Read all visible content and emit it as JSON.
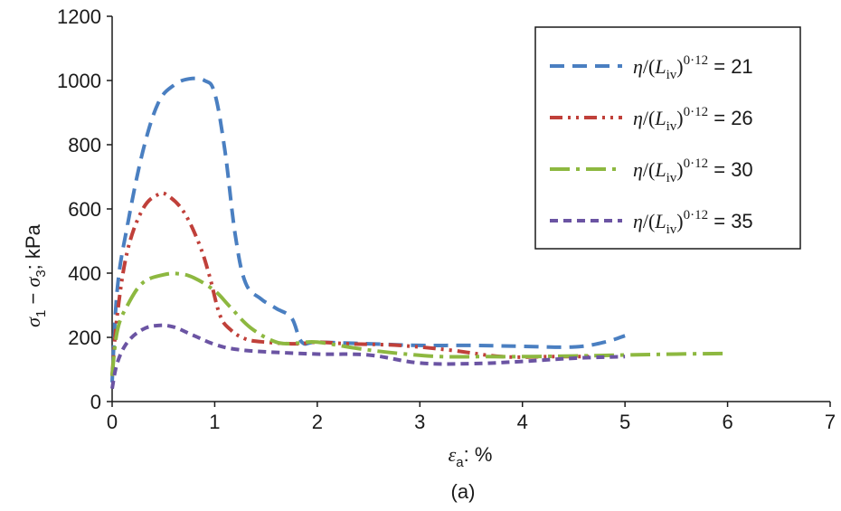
{
  "chart_data": {
    "type": "line",
    "caption": "(a)",
    "xlabel": {
      "var": "ε",
      "sub": "a",
      "unit": ": %"
    },
    "ylabel": {
      "text": "σ1 − σ3; kPa"
    },
    "xlim": [
      0,
      7
    ],
    "ylim": [
      0,
      1200
    ],
    "xticks": [
      0,
      1,
      2,
      3,
      4,
      5,
      6,
      7
    ],
    "yticks": [
      0,
      200,
      400,
      600,
      800,
      1000,
      1200
    ],
    "legend_position": "top-right",
    "grid": false,
    "series": [
      {
        "name": "η/(Liv)^0·12 = 21",
        "legend_value": "21",
        "color": "#4a7fc1",
        "dash": "long-dash",
        "points": [
          [
            0,
            60
          ],
          [
            0.05,
            350
          ],
          [
            0.15,
            550
          ],
          [
            0.3,
            780
          ],
          [
            0.45,
            930
          ],
          [
            0.6,
            985
          ],
          [
            0.75,
            1005
          ],
          [
            0.9,
            1000
          ],
          [
            1.0,
            960
          ],
          [
            1.1,
            780
          ],
          [
            1.2,
            520
          ],
          [
            1.3,
            370
          ],
          [
            1.45,
            320
          ],
          [
            1.6,
            290
          ],
          [
            1.75,
            260
          ],
          [
            1.85,
            185
          ],
          [
            2.0,
            185
          ],
          [
            2.5,
            180
          ],
          [
            3.0,
            175
          ],
          [
            3.5,
            175
          ],
          [
            4.0,
            172
          ],
          [
            4.5,
            170
          ],
          [
            4.8,
            185
          ],
          [
            5.0,
            205
          ]
        ]
      },
      {
        "name": "η/(Liv)^0·12 = 26",
        "legend_value": "26",
        "color": "#c0403a",
        "dash": "dash-dot-dot",
        "points": [
          [
            0,
            80
          ],
          [
            0.05,
            270
          ],
          [
            0.15,
            470
          ],
          [
            0.3,
            600
          ],
          [
            0.45,
            645
          ],
          [
            0.55,
            640
          ],
          [
            0.7,
            590
          ],
          [
            0.85,
            490
          ],
          [
            0.95,
            390
          ],
          [
            1.05,
            270
          ],
          [
            1.15,
            225
          ],
          [
            1.3,
            195
          ],
          [
            1.5,
            185
          ],
          [
            1.8,
            180
          ],
          [
            2.0,
            185
          ],
          [
            2.3,
            180
          ],
          [
            2.8,
            175
          ],
          [
            3.3,
            160
          ],
          [
            3.8,
            140
          ],
          [
            4.3,
            140
          ],
          [
            4.7,
            140
          ]
        ]
      },
      {
        "name": "η/(Liv)^0·12 = 30",
        "legend_value": "30",
        "color": "#8db840",
        "dash": "long-dash-dot",
        "points": [
          [
            0,
            80
          ],
          [
            0.05,
            220
          ],
          [
            0.15,
            300
          ],
          [
            0.3,
            370
          ],
          [
            0.5,
            395
          ],
          [
            0.65,
            398
          ],
          [
            0.8,
            385
          ],
          [
            1.0,
            345
          ],
          [
            1.15,
            295
          ],
          [
            1.35,
            230
          ],
          [
            1.6,
            185
          ],
          [
            1.8,
            182
          ],
          [
            2.0,
            185
          ],
          [
            2.4,
            165
          ],
          [
            2.8,
            150
          ],
          [
            3.2,
            140
          ],
          [
            3.6,
            140
          ],
          [
            4.0,
            140
          ],
          [
            4.5,
            142
          ],
          [
            5.0,
            145
          ],
          [
            5.5,
            148
          ],
          [
            6.0,
            150
          ]
        ]
      },
      {
        "name": "η/(Liv)^0·12 = 35",
        "legend_value": "35",
        "color": "#6b54a3",
        "dash": "short-dash",
        "points": [
          [
            0,
            40
          ],
          [
            0.05,
            120
          ],
          [
            0.15,
            185
          ],
          [
            0.3,
            225
          ],
          [
            0.45,
            237
          ],
          [
            0.6,
            232
          ],
          [
            0.8,
            205
          ],
          [
            1.0,
            178
          ],
          [
            1.2,
            163
          ],
          [
            1.5,
            155
          ],
          [
            2.0,
            148
          ],
          [
            2.5,
            145
          ],
          [
            3.0,
            120
          ],
          [
            3.5,
            118
          ],
          [
            4.0,
            125
          ],
          [
            4.5,
            135
          ],
          [
            5.0,
            140
          ]
        ]
      }
    ]
  }
}
